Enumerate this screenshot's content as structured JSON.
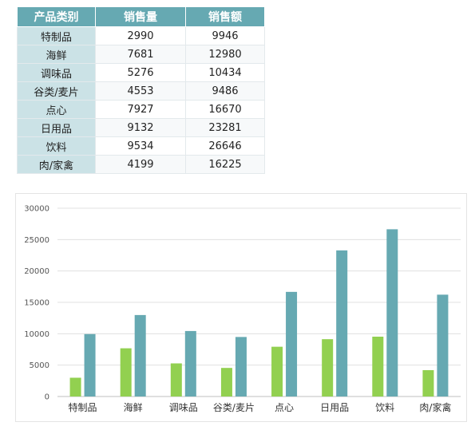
{
  "table": {
    "headers": [
      "产品类别",
      "销售量",
      "销售额"
    ],
    "rows": [
      [
        "特制品",
        "2990",
        "9946"
      ],
      [
        "海鲜",
        "7681",
        "12980"
      ],
      [
        "调味品",
        "5276",
        "10434"
      ],
      [
        "谷类/麦片",
        "4553",
        "9486"
      ],
      [
        "点心",
        "7927",
        "16670"
      ],
      [
        "日用品",
        "9132",
        "23281"
      ],
      [
        "饮料",
        "9534",
        "26646"
      ],
      [
        "肉/家禽",
        "4199",
        "16225"
      ]
    ]
  },
  "chart_data": {
    "type": "bar",
    "categories": [
      "特制品",
      "海鲜",
      "调味品",
      "谷类/麦片",
      "点心",
      "日用品",
      "饮料",
      "肉/家禽"
    ],
    "series": [
      {
        "values": [
          2990,
          7681,
          5276,
          4553,
          7927,
          9132,
          9534,
          4199
        ],
        "color": "#92d050"
      },
      {
        "values": [
          9946,
          12980,
          10434,
          9486,
          16670,
          23281,
          26646,
          16225
        ],
        "color": "#66a9b2"
      }
    ],
    "ylim": [
      0,
      30000
    ],
    "yticks": [
      0,
      5000,
      10000,
      15000,
      20000,
      25000,
      30000
    ],
    "grid": true,
    "legend": "none"
  }
}
